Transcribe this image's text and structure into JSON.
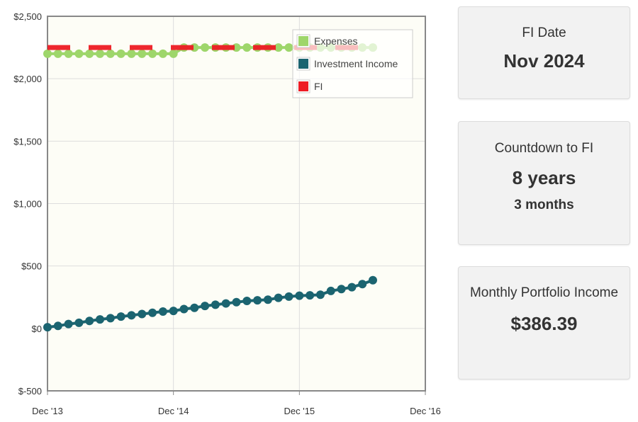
{
  "chart_data": {
    "type": "line",
    "x_ticks": [
      "Dec '13",
      "Dec '14",
      "Dec '15",
      "Dec '16"
    ],
    "y_ticks": [
      "$2,500",
      "$2,000",
      "$1,500",
      "$1,000",
      "$500",
      "$0",
      "$-500"
    ],
    "ylim": [
      -500,
      2500
    ],
    "xlim": [
      "2013-12",
      "2016-12"
    ],
    "grid": true,
    "legend_position": "top-right",
    "series": [
      {
        "name": "Expenses",
        "color": "#9ed66b",
        "style": "dotted-markers",
        "x": [
          "2013-12",
          "2014-01",
          "2014-02",
          "2014-03",
          "2014-04",
          "2014-05",
          "2014-06",
          "2014-07",
          "2014-08",
          "2014-09",
          "2014-10",
          "2014-11",
          "2014-12",
          "2015-01",
          "2015-02",
          "2015-03",
          "2015-04",
          "2015-05",
          "2015-06",
          "2015-07",
          "2015-08",
          "2015-09",
          "2015-10",
          "2015-11",
          "2015-12",
          "2016-01",
          "2016-02",
          "2016-03",
          "2016-04",
          "2016-05",
          "2016-06",
          "2016-07"
        ],
        "values": [
          2200,
          2200,
          2200,
          2200,
          2200,
          2200,
          2200,
          2200,
          2200,
          2200,
          2200,
          2200,
          2200,
          2250,
          2250,
          2250,
          2250,
          2250,
          2250,
          2250,
          2250,
          2250,
          2250,
          2250,
          2250,
          2250,
          2250,
          2250,
          2250,
          2250,
          2250,
          2250
        ]
      },
      {
        "name": "Investment Income",
        "color": "#1b6470",
        "style": "dotted-markers",
        "x": [
          "2013-12",
          "2014-01",
          "2014-02",
          "2014-03",
          "2014-04",
          "2014-05",
          "2014-06",
          "2014-07",
          "2014-08",
          "2014-09",
          "2014-10",
          "2014-11",
          "2014-12",
          "2015-01",
          "2015-02",
          "2015-03",
          "2015-04",
          "2015-05",
          "2015-06",
          "2015-07",
          "2015-08",
          "2015-09",
          "2015-10",
          "2015-11",
          "2015-12",
          "2016-01",
          "2016-02",
          "2016-03",
          "2016-04",
          "2016-05",
          "2016-06",
          "2016-07"
        ],
        "values": [
          10,
          20,
          35,
          45,
          60,
          72,
          82,
          95,
          105,
          115,
          125,
          135,
          140,
          155,
          165,
          180,
          190,
          200,
          210,
          220,
          225,
          230,
          245,
          255,
          262,
          265,
          270,
          300,
          315,
          330,
          355,
          386
        ]
      },
      {
        "name": "FI",
        "color": "#ee1c24",
        "style": "dashed",
        "x": [
          "2013-12",
          "2016-07"
        ],
        "values": [
          2250,
          2250
        ]
      }
    ]
  },
  "cards": {
    "fi_date": {
      "label": "FI Date",
      "value": "Nov 2024"
    },
    "countdown": {
      "label": "Countdown to FI",
      "years": "8 years",
      "months": "3 months"
    },
    "income": {
      "label": "Monthly Portfolio Income",
      "value": "$386.39"
    }
  }
}
